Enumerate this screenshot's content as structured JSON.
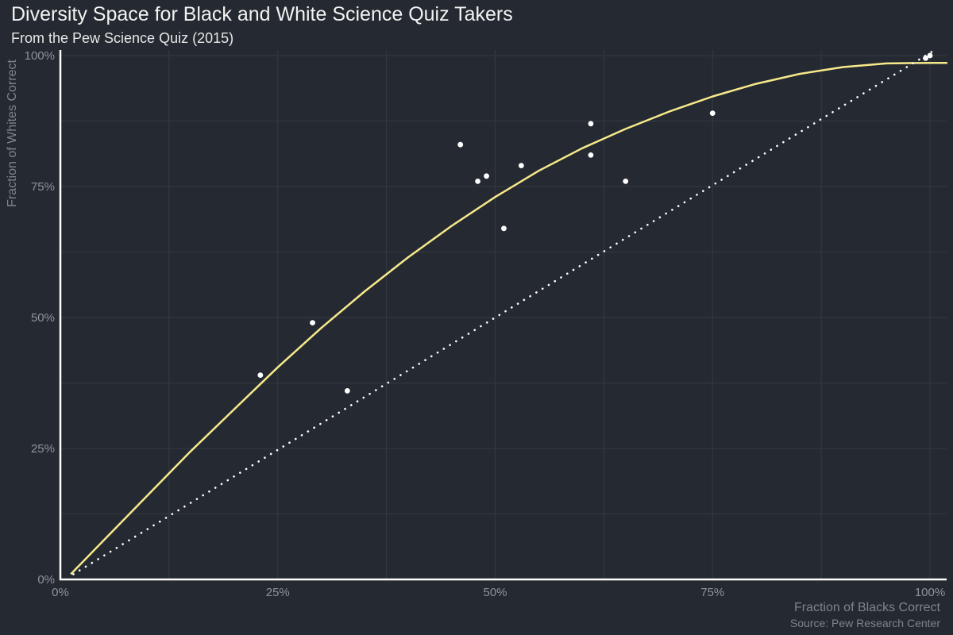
{
  "chart_data": {
    "type": "scatter",
    "title": "Diversity Space for Black and White Science Quiz Takers",
    "subtitle": "From the Pew Science Quiz (2015)",
    "xlabel": "Fraction of Blacks Correct",
    "ylabel": "Fraction of Whites Correct",
    "caption": "Source: Pew Research Center",
    "xlim": [
      0,
      1.02
    ],
    "ylim": [
      0,
      1.0
    ],
    "x_ticks": [
      0,
      0.25,
      0.5,
      0.75,
      1.0
    ],
    "x_tick_labels": [
      "0%",
      "25%",
      "50%",
      "75%",
      "100%"
    ],
    "y_ticks": [
      0,
      0.25,
      0.5,
      0.75,
      1.0
    ],
    "y_tick_labels": [
      "0%",
      "25%",
      "50%",
      "75%",
      "100%"
    ],
    "grid": true,
    "colors": {
      "background": "#252a32",
      "grid": "#353a42",
      "axis": "#ffffff",
      "tick_text": "#8f949c",
      "points": "#ffffff",
      "fit_curve": "#f7e98a",
      "reference_line": "#ffffff"
    },
    "series": [
      {
        "kind": "points",
        "x": [
          0.23,
          0.29,
          0.33,
          0.46,
          0.48,
          0.49,
          0.51,
          0.53,
          0.61,
          0.61,
          0.65,
          0.75,
          0.995,
          1.0
        ],
        "y": [
          0.39,
          0.49,
          0.36,
          0.83,
          0.76,
          0.77,
          0.67,
          0.79,
          0.87,
          0.81,
          0.76,
          0.89,
          0.995,
          1.0
        ]
      },
      {
        "kind": "fit-curve",
        "x": [
          0.012,
          0.05,
          0.1,
          0.15,
          0.2,
          0.25,
          0.3,
          0.35,
          0.4,
          0.45,
          0.5,
          0.55,
          0.6,
          0.65,
          0.7,
          0.75,
          0.8,
          0.85,
          0.9,
          0.95,
          1.0,
          1.02
        ],
        "y": [
          0.01,
          0.075,
          0.16,
          0.245,
          0.325,
          0.405,
          0.48,
          0.55,
          0.615,
          0.675,
          0.73,
          0.78,
          0.823,
          0.86,
          0.893,
          0.922,
          0.946,
          0.965,
          0.978,
          0.985,
          0.986,
          0.986
        ]
      },
      {
        "kind": "reference-line",
        "x": [
          0.015,
          1.005
        ],
        "y": [
          0.01,
          1.01
        ]
      }
    ]
  }
}
